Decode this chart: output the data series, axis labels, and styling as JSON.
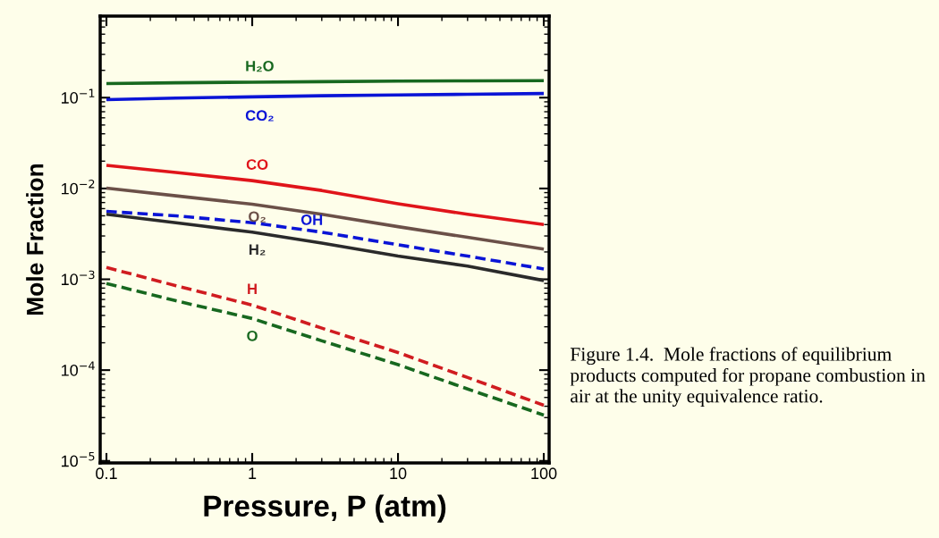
{
  "chart_data": {
    "type": "line",
    "xlabel": "Pressure, P (atm)",
    "ylabel": "Mole Fraction",
    "log": "xy",
    "grid": false,
    "legend": false,
    "x": [
      0.1,
      0.3,
      1,
      3,
      10,
      30,
      100
    ],
    "xlim": [
      0.0906,
      108.8
    ],
    "ylim": [
      9.5e-06,
      0.79
    ],
    "xticks": [
      0.1,
      1,
      10,
      100
    ],
    "yticks": [
      {
        "value": 1e-05,
        "label": "10$^{−5}$"
      },
      {
        "value": 0.0001,
        "label": "10$^{−4}$"
      },
      {
        "value": 0.001,
        "label": "10$^{−3}$"
      },
      {
        "value": 0.01,
        "label": "10$^{−2}$"
      },
      {
        "value": 0.1,
        "label": "10$^{−1}$"
      }
    ],
    "series": [
      {
        "name": "H₂O",
        "color": "#17681f",
        "line_style": "solid",
        "values": [
          0.143,
          0.146,
          0.148,
          0.15,
          0.152,
          0.153,
          0.154
        ]
      },
      {
        "name": "CO₂",
        "color": "#0a14d6",
        "line_style": "solid",
        "values": [
          0.095,
          0.099,
          0.102,
          0.105,
          0.107,
          0.109,
          0.111
        ]
      },
      {
        "name": "CO",
        "color": "#e0141a",
        "line_style": "solid",
        "values": [
          0.018,
          0.015,
          0.0122,
          0.0095,
          0.0068,
          0.0052,
          0.004
        ]
      },
      {
        "name": "O₂",
        "color": "#6b5048",
        "line_style": "solid",
        "values": [
          0.0101,
          0.0083,
          0.0067,
          0.0052,
          0.0038,
          0.0029,
          0.00215
        ]
      },
      {
        "name": "OH",
        "color": "#0a14d6",
        "line_style": "dashed",
        "values": [
          0.0056,
          0.005,
          0.0042,
          0.0033,
          0.0024,
          0.0018,
          0.0013
        ]
      },
      {
        "name": "H₂",
        "color": "#2a2a2a",
        "line_style": "solid",
        "values": [
          0.0052,
          0.0042,
          0.0033,
          0.0025,
          0.0018,
          0.0014,
          0.00097
        ]
      },
      {
        "name": "H",
        "color": "#d01c20",
        "line_style": "dashed",
        "values": [
          0.00135,
          0.00085,
          0.00052,
          0.00029,
          0.000156,
          8.3e-05,
          4.1e-05
        ]
      },
      {
        "name": "O",
        "color": "#17681f",
        "line_style": "dashed",
        "values": [
          0.0009,
          0.00058,
          0.00037,
          0.00021,
          0.000115,
          6.2e-05,
          3.2e-05
        ]
      }
    ],
    "annotations": [
      "Figure 1.4.  Mole fractions of equilibrium products computed for propane combustion in air at the unity equivalence ratio."
    ]
  }
}
